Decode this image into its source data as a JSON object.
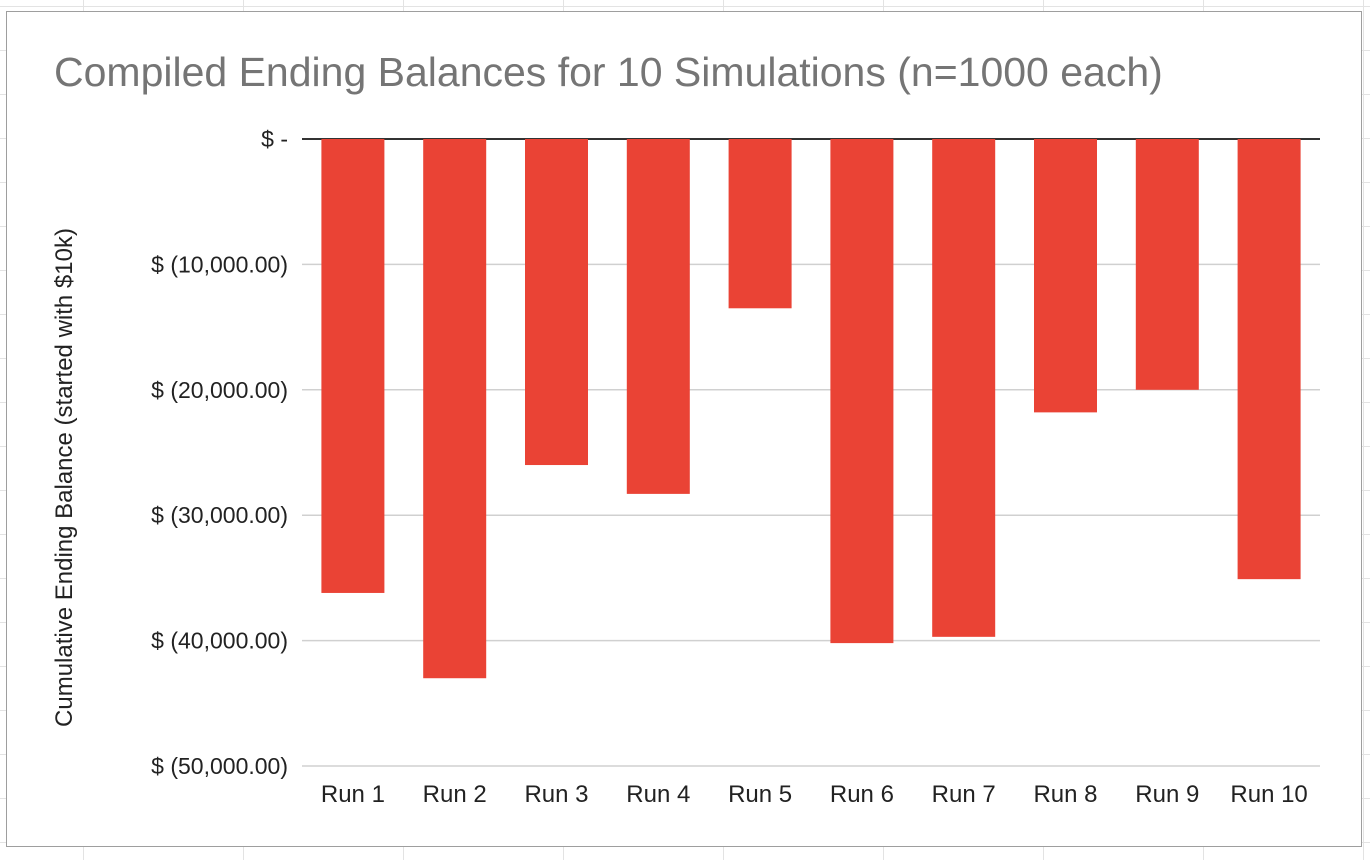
{
  "chart_data": {
    "type": "bar",
    "title": "Compiled Ending Balances for 10 Simulations (n=1000 each)",
    "xlabel": "",
    "ylabel": "Cumulative Ending Balance (started with $10k)",
    "categories": [
      "Run 1",
      "Run 2",
      "Run 3",
      "Run 4",
      "Run 5",
      "Run 6",
      "Run 7",
      "Run 8",
      "Run 9",
      "Run 10"
    ],
    "values": [
      -36200,
      -43000,
      -26000,
      -28300,
      -13500,
      -40200,
      -39700,
      -21800,
      -20000,
      -35100
    ],
    "ylim": [
      -50000,
      0
    ],
    "yticks": [
      0,
      -10000,
      -20000,
      -30000,
      -40000,
      -50000
    ],
    "ytick_labels": [
      "$ -",
      "$ (10,000.00)",
      "$ (20,000.00)",
      "$ (30,000.00)",
      "$ (40,000.00)",
      "$ (50,000.00)"
    ],
    "bar_color": "#ea4335",
    "grid": true,
    "legend": "none"
  }
}
